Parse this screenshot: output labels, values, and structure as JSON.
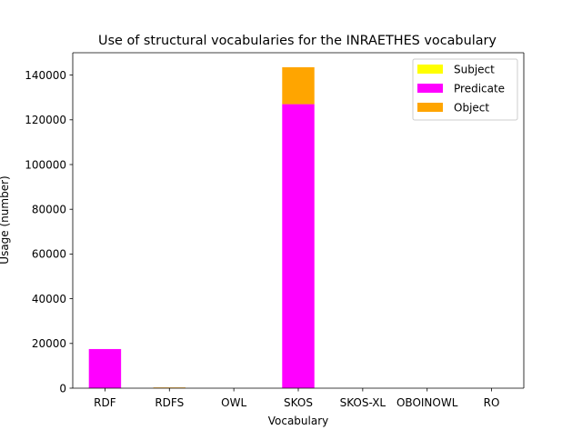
{
  "chart_data": {
    "type": "bar",
    "stacked": true,
    "title": "Use of structural vocabularies for the INRAETHES vocabulary",
    "xlabel": "Vocabulary",
    "ylabel": "Usage (number)",
    "categories": [
      "RDF",
      "RDFS",
      "OWL",
      "SKOS",
      "SKOS-XL",
      "OBOINOWL",
      "RO"
    ],
    "series": [
      {
        "name": "Subject",
        "color": "#ffff00",
        "values": [
          0,
          0,
          0,
          0,
          0,
          0,
          0
        ]
      },
      {
        "name": "Predicate",
        "color": "#ff00ff",
        "values": [
          17500,
          0,
          0,
          127000,
          0,
          0,
          0
        ]
      },
      {
        "name": "Object",
        "color": "#ffa500",
        "values": [
          0,
          300,
          0,
          16500,
          0,
          0,
          0
        ]
      }
    ],
    "ylim": [
      0,
      150000
    ],
    "yticks": [
      0,
      20000,
      40000,
      60000,
      80000,
      100000,
      120000,
      140000
    ],
    "grid": false,
    "legend_position": "top-right"
  }
}
